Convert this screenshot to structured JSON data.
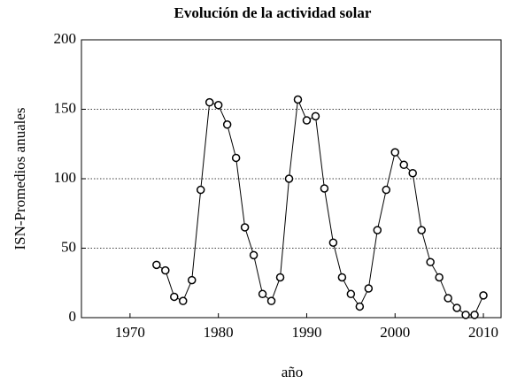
{
  "chart_data": {
    "type": "line",
    "title": "Evolución de la actividad solar",
    "x_label": "año",
    "y_label": "ISN-Promedios anuales",
    "x": [
      1973,
      1974,
      1975,
      1976,
      1977,
      1978,
      1979,
      1980,
      1981,
      1982,
      1983,
      1984,
      1985,
      1986,
      1987,
      1988,
      1989,
      1990,
      1991,
      1992,
      1993,
      1994,
      1995,
      1996,
      1997,
      1998,
      1999,
      2000,
      2001,
      2002,
      2003,
      2004,
      2005,
      2006,
      2007,
      2008,
      2009,
      2010
    ],
    "values": [
      38,
      34,
      15,
      12,
      27,
      92,
      155,
      153,
      139,
      115,
      65,
      45,
      17,
      12,
      29,
      100,
      157,
      142,
      145,
      93,
      54,
      29,
      17,
      8,
      21,
      63,
      92,
      119,
      110,
      104,
      63,
      40,
      29,
      14,
      7,
      2,
      2,
      16
    ],
    "color": "#000000",
    "xlim": [
      1964.5,
      2012
    ],
    "xticks": [
      1970,
      1980,
      1990,
      2000,
      2010
    ],
    "ylim": [
      0,
      200
    ],
    "yticks": [
      0,
      50,
      100,
      150,
      200
    ],
    "grid": true
  }
}
